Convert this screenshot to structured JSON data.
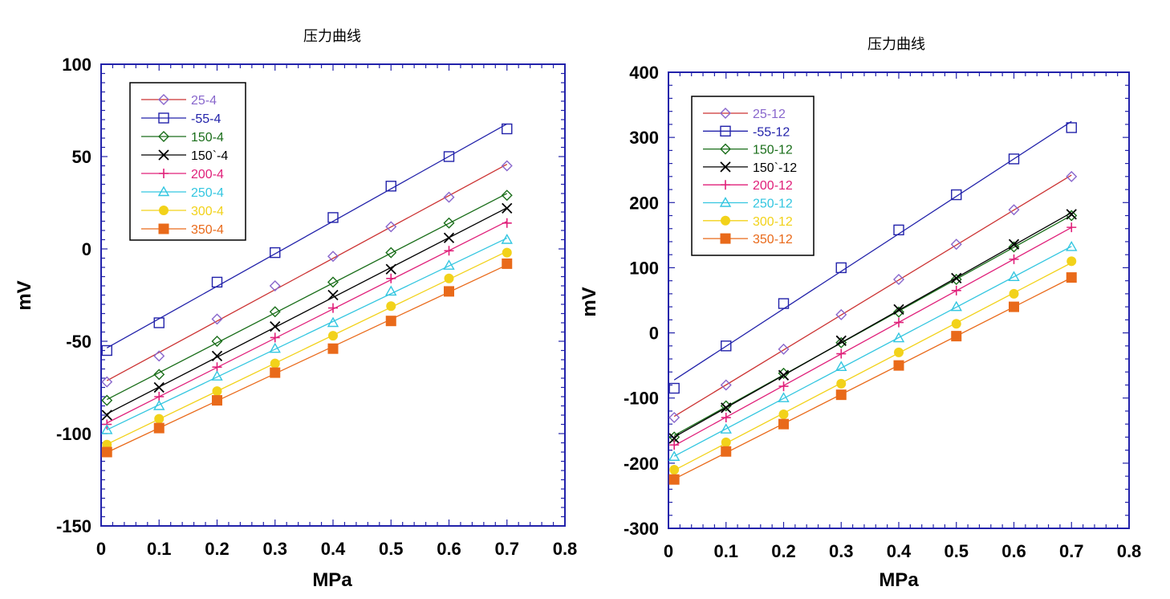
{
  "chart_data": [
    {
      "type": "line",
      "title": "压力曲线",
      "xlabel": "MPa",
      "ylabel": "mV",
      "xlim": [
        0,
        0.8
      ],
      "ylim": [
        -150,
        100
      ],
      "xticks": [
        "0",
        "0.1",
        "0.2",
        "0.3",
        "0.4",
        "0.5",
        "0.6",
        "0.7",
        "0.8"
      ],
      "yticks": [
        "-150",
        "-100",
        "-50",
        "0",
        "50",
        "100"
      ],
      "legend_position": "top-left",
      "x": [
        0.01,
        0.1,
        0.2,
        0.3,
        0.4,
        0.5,
        0.6,
        0.7
      ],
      "series": [
        {
          "name": "25-4",
          "marker": "diamond-open",
          "marker_color": "#8866cc",
          "line_color": "#cc3333",
          "text_color": "#8866cc",
          "values": [
            -72,
            -58,
            -38,
            -20,
            -4,
            12,
            28,
            45
          ]
        },
        {
          "name": "-55-4",
          "marker": "square-open",
          "marker_color": "#2222aa",
          "line_color": "#2222aa",
          "text_color": "#2222aa",
          "values": [
            -55,
            -40,
            -18,
            -2,
            17,
            34,
            50,
            65
          ]
        },
        {
          "name": "150-4",
          "marker": "diamond-open",
          "marker_color": "#1a6e1a",
          "line_color": "#1a6e1a",
          "text_color": "#1a6e1a",
          "values": [
            -82,
            -68,
            -50,
            -34,
            -18,
            -2,
            14,
            29
          ]
        },
        {
          "name": "150`-4",
          "marker": "x",
          "marker_color": "#000000",
          "line_color": "#000000",
          "text_color": "#000000",
          "values": [
            -90,
            -75,
            -58,
            -42,
            -25,
            -11,
            6,
            22
          ]
        },
        {
          "name": "200-4",
          "marker": "plus",
          "marker_color": "#e0207a",
          "line_color": "#e0207a",
          "text_color": "#e0207a",
          "values": [
            -95,
            -80,
            -64,
            -48,
            -32,
            -16,
            -1,
            14
          ]
        },
        {
          "name": "250-4",
          "marker": "triangle-open",
          "marker_color": "#33c6e0",
          "line_color": "#33c6e0",
          "text_color": "#33c6e0",
          "values": [
            -98,
            -85,
            -69,
            -54,
            -40,
            -23,
            -9,
            5
          ]
        },
        {
          "name": "300-4",
          "marker": "circle-filled",
          "marker_color": "#f2d21a",
          "line_color": "#f2d21a",
          "text_color": "#f2d21a",
          "values": [
            -106,
            -92,
            -77,
            -62,
            -47,
            -31,
            -16,
            -2
          ]
        },
        {
          "name": "350-4",
          "marker": "square-filled",
          "marker_color": "#e96a1a",
          "line_color": "#e96a1a",
          "text_color": "#e96a1a",
          "values": [
            -110,
            -97,
            -82,
            -67,
            -54,
            -39,
            -23,
            -8
          ]
        }
      ]
    },
    {
      "type": "line",
      "title": "压力曲线",
      "xlabel": "MPa",
      "ylabel": "mV",
      "xlim": [
        0,
        0.8
      ],
      "ylim": [
        -300,
        400
      ],
      "xticks": [
        "0",
        "0.1",
        "0.2",
        "0.3",
        "0.4",
        "0.5",
        "0.6",
        "0.7",
        "0.8"
      ],
      "yticks": [
        "-300",
        "-200",
        "-100",
        "0",
        "100",
        "200",
        "300",
        "400"
      ],
      "legend_position": "top-left",
      "x": [
        0.01,
        0.1,
        0.2,
        0.3,
        0.4,
        0.5,
        0.6,
        0.7
      ],
      "series": [
        {
          "name": "25-12",
          "marker": "diamond-open",
          "marker_color": "#8866cc",
          "line_color": "#cc3333",
          "text_color": "#8866cc",
          "values": [
            -130,
            -80,
            -25,
            28,
            82,
            136,
            189,
            240
          ]
        },
        {
          "name": "-55-12",
          "marker": "square-open",
          "marker_color": "#2222aa",
          "line_color": "#2222aa",
          "text_color": "#2222aa",
          "values": [
            -85,
            -20,
            45,
            100,
            158,
            212,
            267,
            315
          ]
        },
        {
          "name": "150-12",
          "marker": "diamond-open",
          "marker_color": "#1a6e1a",
          "line_color": "#1a6e1a",
          "text_color": "#1a6e1a",
          "values": [
            -160,
            -112,
            -62,
            -15,
            32,
            82,
            132,
            180
          ]
        },
        {
          "name": "150`-12",
          "marker": "x",
          "marker_color": "#000000",
          "line_color": "#000000",
          "text_color": "#000000",
          "values": [
            -162,
            -115,
            -65,
            -12,
            36,
            84,
            136,
            182
          ]
        },
        {
          "name": "200-12",
          "marker": "plus",
          "marker_color": "#e0207a",
          "line_color": "#e0207a",
          "text_color": "#e0207a",
          "values": [
            -172,
            -130,
            -82,
            -32,
            16,
            65,
            113,
            162
          ]
        },
        {
          "name": "250-12",
          "marker": "triangle-open",
          "marker_color": "#33c6e0",
          "line_color": "#33c6e0",
          "text_color": "#33c6e0",
          "values": [
            -190,
            -148,
            -100,
            -52,
            -8,
            40,
            86,
            132
          ]
        },
        {
          "name": "300-12",
          "marker": "circle-filled",
          "marker_color": "#f2d21a",
          "line_color": "#f2d21a",
          "text_color": "#f2d21a",
          "values": [
            -210,
            -168,
            -125,
            -78,
            -30,
            14,
            60,
            110
          ]
        },
        {
          "name": "350-12",
          "marker": "square-filled",
          "marker_color": "#e96a1a",
          "line_color": "#e96a1a",
          "text_color": "#e96a1a",
          "values": [
            -225,
            -182,
            -140,
            -95,
            -50,
            -5,
            40,
            85
          ]
        }
      ]
    }
  ]
}
